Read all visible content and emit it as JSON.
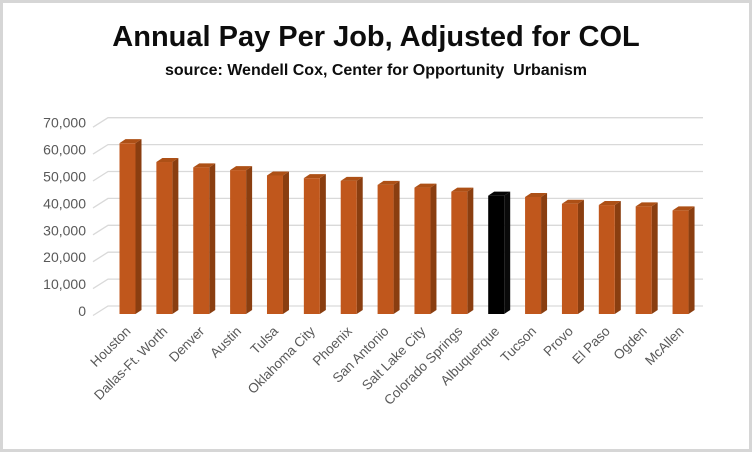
{
  "window": {
    "background": "#FFFFFF",
    "border_color": "#D6D6D6"
  },
  "chart_data": {
    "type": "bar",
    "style": "3d-column",
    "title": "Annual Pay Per Job, Adjusted for COL",
    "subtitle": "source: Wendell Cox, Center for Opportunity  Urbanism",
    "categories": [
      "Houston",
      "Dallas-Ft. Worth",
      "Denver",
      "Austin",
      "Tulsa",
      "Oklahoma City",
      "Phoenix",
      "San Antonio",
      "Salt Lake City",
      "Colorado Springs",
      "Albuquerque",
      "Tucson",
      "Provo",
      "El Paso",
      "Ogden",
      "McAllen"
    ],
    "values": [
      63500,
      56500,
      54500,
      53500,
      51500,
      50500,
      49500,
      48000,
      47000,
      45500,
      44000,
      43500,
      41000,
      40500,
      40000,
      38500
    ],
    "highlighted_category": "Albuquerque",
    "highlight_index": 10,
    "xlabel": "",
    "ylabel": "",
    "ylim": [
      0,
      70000
    ],
    "ytick_step": 10000,
    "ytick_labels": [
      "0",
      "10,000",
      "20,000",
      "30,000",
      "40,000",
      "50,000",
      "60,000",
      "70,000"
    ],
    "grid": true,
    "legend": "none",
    "x_label_rotation_deg": 45,
    "colors": {
      "bar_front": "#C0571C",
      "bar_side": "#8A3E10",
      "bar_top": "#AD5016",
      "highlight_front": "#000000",
      "highlight_side": "#0A0A0A",
      "highlight_top": "#050505",
      "gridline": "#D9D9D9",
      "axis_text": "#595959",
      "title_text": "#0d0d0d"
    }
  }
}
